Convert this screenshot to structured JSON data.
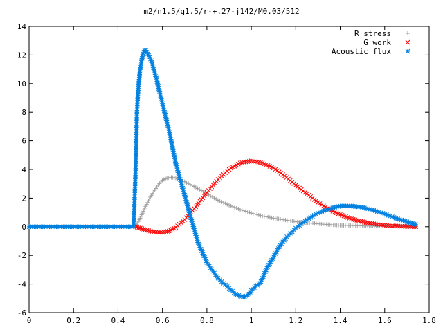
{
  "chart_data": {
    "type": "scatter",
    "title": "m2/n1.5/q1.5/r-+.27-j142/M0.03/512",
    "xlabel": "",
    "ylabel": "",
    "xlim": [
      0,
      1.8
    ],
    "ylim": [
      -6,
      14
    ],
    "x_ticks": [
      "0",
      "0.2",
      "0.4",
      "0.6",
      "0.8",
      "1",
      "1.2",
      "1.4",
      "1.6",
      "1.8"
    ],
    "y_ticks": [
      "-6",
      "-4",
      "-2",
      "0",
      "2",
      "4",
      "6",
      "8",
      "10",
      "12",
      "14"
    ],
    "grid": false,
    "legend_position": "top-right",
    "series": [
      {
        "name": "R stress",
        "marker": "+",
        "color": "#a0a0a0",
        "points": [
          [
            0.0,
            0.0
          ],
          [
            0.1,
            0.0
          ],
          [
            0.2,
            0.0
          ],
          [
            0.3,
            0.0
          ],
          [
            0.4,
            0.0
          ],
          [
            0.47,
            0.0
          ],
          [
            0.48,
            0.05
          ],
          [
            0.5,
            0.6
          ],
          [
            0.52,
            1.3
          ],
          [
            0.55,
            2.2
          ],
          [
            0.58,
            2.9
          ],
          [
            0.6,
            3.25
          ],
          [
            0.62,
            3.4
          ],
          [
            0.64,
            3.45
          ],
          [
            0.66,
            3.4
          ],
          [
            0.7,
            3.15
          ],
          [
            0.75,
            2.75
          ],
          [
            0.8,
            2.3
          ],
          [
            0.85,
            1.85
          ],
          [
            0.9,
            1.5
          ],
          [
            0.95,
            1.2
          ],
          [
            1.0,
            0.95
          ],
          [
            1.05,
            0.75
          ],
          [
            1.1,
            0.6
          ],
          [
            1.2,
            0.35
          ],
          [
            1.3,
            0.2
          ],
          [
            1.4,
            0.1
          ],
          [
            1.5,
            0.06
          ],
          [
            1.6,
            0.04
          ],
          [
            1.7,
            0.03
          ],
          [
            1.74,
            0.02
          ]
        ]
      },
      {
        "name": "G work",
        "marker": "x",
        "color": "#ff0000",
        "points": [
          [
            0.48,
            0.0
          ],
          [
            0.5,
            -0.1
          ],
          [
            0.53,
            -0.25
          ],
          [
            0.57,
            -0.38
          ],
          [
            0.6,
            -0.4
          ],
          [
            0.63,
            -0.3
          ],
          [
            0.66,
            -0.05
          ],
          [
            0.7,
            0.5
          ],
          [
            0.75,
            1.4
          ],
          [
            0.8,
            2.4
          ],
          [
            0.85,
            3.3
          ],
          [
            0.9,
            4.0
          ],
          [
            0.95,
            4.45
          ],
          [
            1.0,
            4.6
          ],
          [
            1.05,
            4.45
          ],
          [
            1.1,
            4.1
          ],
          [
            1.15,
            3.55
          ],
          [
            1.2,
            2.9
          ],
          [
            1.25,
            2.3
          ],
          [
            1.3,
            1.7
          ],
          [
            1.35,
            1.2
          ],
          [
            1.4,
            0.85
          ],
          [
            1.45,
            0.55
          ],
          [
            1.5,
            0.35
          ],
          [
            1.55,
            0.2
          ],
          [
            1.6,
            0.1
          ],
          [
            1.65,
            0.05
          ],
          [
            1.7,
            0.02
          ],
          [
            1.74,
            0.0
          ]
        ]
      },
      {
        "name": "Acoustic flux",
        "marker": "*",
        "color": "#0080e0",
        "points": [
          [
            0.0,
            0.0
          ],
          [
            0.1,
            0.0
          ],
          [
            0.2,
            0.0
          ],
          [
            0.3,
            0.0
          ],
          [
            0.4,
            0.0
          ],
          [
            0.47,
            0.0
          ],
          [
            0.48,
            4.3
          ],
          [
            0.485,
            8.0
          ],
          [
            0.49,
            9.4
          ],
          [
            0.495,
            10.3
          ],
          [
            0.5,
            11.0
          ],
          [
            0.505,
            11.5
          ],
          [
            0.51,
            11.9
          ],
          [
            0.515,
            12.2
          ],
          [
            0.52,
            12.3
          ],
          [
            0.525,
            12.3
          ],
          [
            0.53,
            12.2
          ],
          [
            0.55,
            11.6
          ],
          [
            0.57,
            10.5
          ],
          [
            0.6,
            8.6
          ],
          [
            0.63,
            6.7
          ],
          [
            0.66,
            4.4
          ],
          [
            0.7,
            2.2
          ],
          [
            0.73,
            0.5
          ],
          [
            0.76,
            -1.1
          ],
          [
            0.8,
            -2.5
          ],
          [
            0.85,
            -3.6
          ],
          [
            0.9,
            -4.3
          ],
          [
            0.93,
            -4.7
          ],
          [
            0.95,
            -4.85
          ],
          [
            0.97,
            -4.9
          ],
          [
            0.99,
            -4.7
          ],
          [
            1.0,
            -4.45
          ],
          [
            1.02,
            -4.15
          ],
          [
            1.04,
            -3.95
          ],
          [
            1.05,
            -3.6
          ],
          [
            1.07,
            -2.9
          ],
          [
            1.1,
            -2.1
          ],
          [
            1.13,
            -1.3
          ],
          [
            1.16,
            -0.7
          ],
          [
            1.2,
            -0.1
          ],
          [
            1.25,
            0.5
          ],
          [
            1.3,
            0.95
          ],
          [
            1.35,
            1.25
          ],
          [
            1.4,
            1.45
          ],
          [
            1.45,
            1.45
          ],
          [
            1.5,
            1.35
          ],
          [
            1.55,
            1.15
          ],
          [
            1.6,
            0.9
          ],
          [
            1.65,
            0.6
          ],
          [
            1.7,
            0.35
          ],
          [
            1.74,
            0.15
          ]
        ]
      }
    ]
  }
}
